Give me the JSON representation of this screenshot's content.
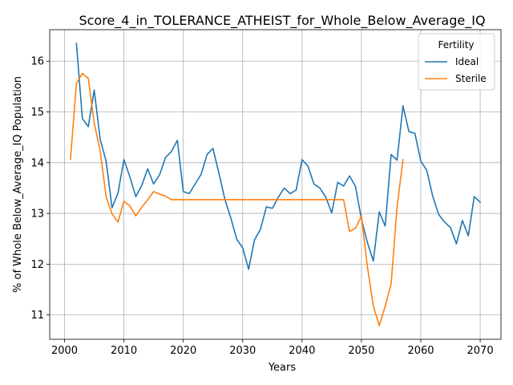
{
  "chart_data": {
    "type": "line",
    "title": "Score_4_in_TOLERANCE_ATHEIST_for_Whole_Below_Average_IQ",
    "xlabel": "Years",
    "ylabel": "% of Whole Below_Average_IQ Population",
    "xlim": [
      1997.5,
      2073.5
    ],
    "ylim": [
      10.52,
      16.62
    ],
    "xticks": [
      2000,
      2010,
      2020,
      2030,
      2040,
      2050,
      2060,
      2070
    ],
    "yticks": [
      11,
      12,
      13,
      14,
      15,
      16
    ],
    "grid": true,
    "legend": {
      "title": "Fertility",
      "position": "top-right"
    },
    "series": [
      {
        "name": "Ideal",
        "color": "#1f77b4",
        "x": [
          2002,
          2003,
          2004,
          2005,
          2006,
          2007,
          2008,
          2009,
          2010,
          2011,
          2012,
          2013,
          2014,
          2015,
          2016,
          2017,
          2018,
          2019,
          2020,
          2021,
          2022,
          2023,
          2024,
          2025,
          2026,
          2027,
          2028,
          2029,
          2030,
          2031,
          2032,
          2033,
          2034,
          2035,
          2036,
          2037,
          2038,
          2039,
          2040,
          2041,
          2042,
          2043,
          2044,
          2045,
          2046,
          2047,
          2048,
          2049,
          2050,
          2051,
          2052,
          2053,
          2054,
          2055,
          2056,
          2057,
          2058,
          2059,
          2060,
          2061,
          2062,
          2063,
          2064,
          2065,
          2066,
          2067,
          2068,
          2069,
          2070
        ],
        "values": [
          16.35,
          14.87,
          14.71,
          15.43,
          14.46,
          14.03,
          13.11,
          13.4,
          14.06,
          13.72,
          13.33,
          13.55,
          13.88,
          13.58,
          13.76,
          14.1,
          14.22,
          14.44,
          13.43,
          13.39,
          13.58,
          13.77,
          14.16,
          14.28,
          13.79,
          13.28,
          12.91,
          12.49,
          12.32,
          11.9,
          12.48,
          12.69,
          13.13,
          13.1,
          13.32,
          13.5,
          13.39,
          13.46,
          14.06,
          13.93,
          13.58,
          13.5,
          13.32,
          13.01,
          13.61,
          13.54,
          13.74,
          13.53,
          12.89,
          12.43,
          12.06,
          13.03,
          12.75,
          14.16,
          14.05,
          15.12,
          14.61,
          14.58,
          14.03,
          13.85,
          13.34,
          12.98,
          12.83,
          12.72,
          12.4,
          12.86,
          12.56,
          13.33,
          13.22
        ]
      },
      {
        "name": "Sterile",
        "color": "#ff7f0e",
        "x": [
          2001,
          2002,
          2003,
          2004,
          2005,
          2006,
          2007,
          2008,
          2009,
          2010,
          2011,
          2012,
          2013,
          2014,
          2015,
          2016,
          2017,
          2018,
          2019,
          2020,
          2021,
          2022,
          2023,
          2024,
          2025,
          2026,
          2027,
          2028,
          2029,
          2030,
          2031,
          2032,
          2033,
          2034,
          2035,
          2036,
          2037,
          2038,
          2039,
          2040,
          2041,
          2042,
          2043,
          2044,
          2045,
          2046,
          2047,
          2048,
          2049,
          2050,
          2051,
          2052,
          2053,
          2054,
          2055,
          2056,
          2057
        ],
        "values": [
          14.07,
          15.56,
          15.76,
          15.66,
          14.78,
          14.23,
          13.33,
          12.99,
          12.83,
          13.24,
          13.15,
          12.95,
          13.12,
          13.27,
          13.43,
          13.38,
          13.34,
          13.27,
          13.27,
          13.27,
          13.27,
          13.27,
          13.27,
          13.27,
          13.27,
          13.27,
          13.27,
          13.27,
          13.27,
          13.27,
          13.27,
          13.27,
          13.27,
          13.27,
          13.27,
          13.27,
          13.27,
          13.27,
          13.27,
          13.27,
          13.27,
          13.27,
          13.27,
          13.27,
          13.27,
          13.27,
          13.27,
          12.64,
          12.71,
          12.95,
          11.95,
          11.18,
          10.79,
          11.17,
          11.61,
          13.13,
          14.06
        ]
      }
    ]
  }
}
